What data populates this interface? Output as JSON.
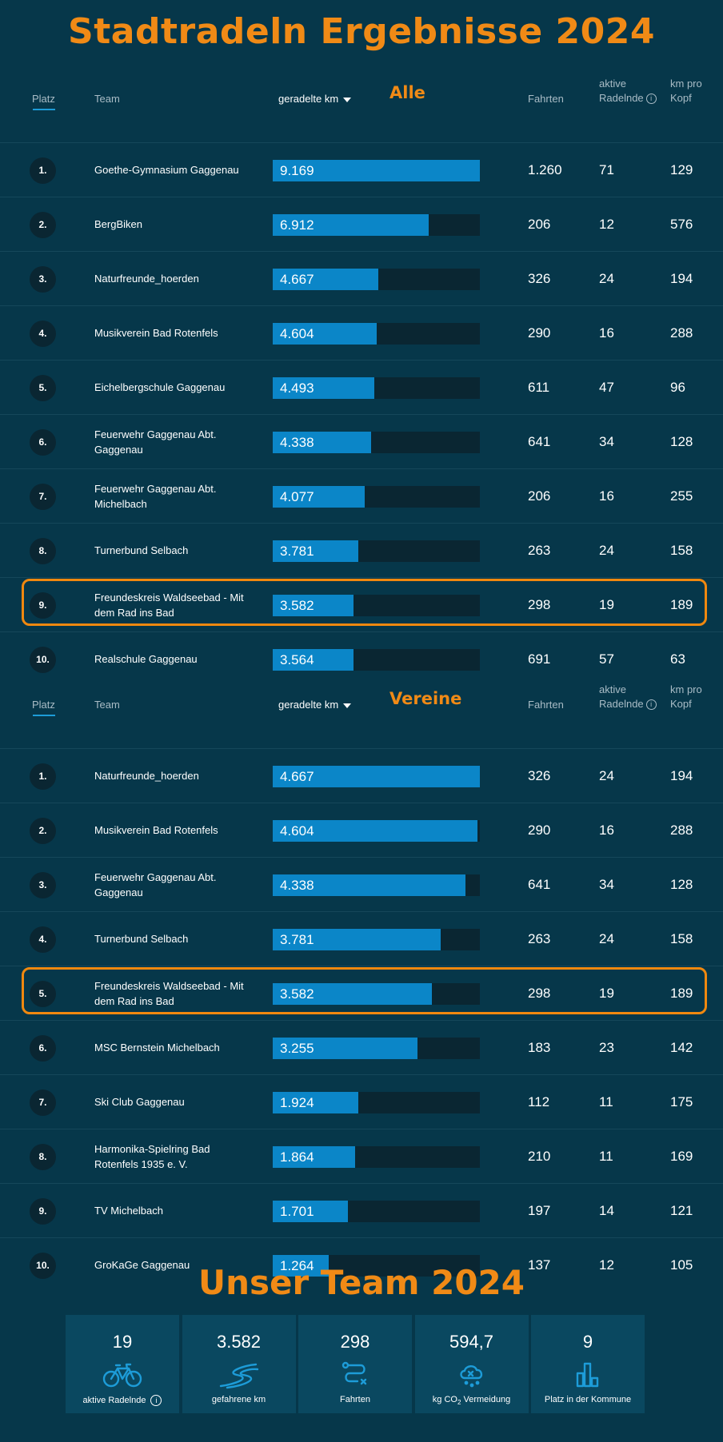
{
  "title": "Stadtradeln Ergebnisse 2024",
  "columns": {
    "platz": "Platz",
    "team": "Team",
    "km": "geradelte km",
    "fahrten": "Fahrten",
    "aktive_line1": "aktive",
    "aktive_line2": "Radelnde",
    "kmkopf_line1": "km pro",
    "kmkopf_line2": "Kopf"
  },
  "tables": [
    {
      "label": "Alle",
      "max_km": 9169,
      "highlight_rank": "9.",
      "rows": [
        {
          "rank": "1.",
          "team": "Goethe-Gymnasium Gaggenau",
          "km": "9.169",
          "km_value": 9169,
          "fahrten": "1.260",
          "aktive": "71",
          "kmkopf": "129"
        },
        {
          "rank": "2.",
          "team": "BergBiken",
          "km": "6.912",
          "km_value": 6912,
          "fahrten": "206",
          "aktive": "12",
          "kmkopf": "576"
        },
        {
          "rank": "3.",
          "team": "Naturfreunde_hoerden",
          "km": "4.667",
          "km_value": 4667,
          "fahrten": "326",
          "aktive": "24",
          "kmkopf": "194"
        },
        {
          "rank": "4.",
          "team": "Musikverein Bad Rotenfels",
          "km": "4.604",
          "km_value": 4604,
          "fahrten": "290",
          "aktive": "16",
          "kmkopf": "288"
        },
        {
          "rank": "5.",
          "team": "Eichelbergschule Gaggenau",
          "km": "4.493",
          "km_value": 4493,
          "fahrten": "611",
          "aktive": "47",
          "kmkopf": "96"
        },
        {
          "rank": "6.",
          "team": "Feuerwehr Gaggenau Abt. Gaggenau",
          "km": "4.338",
          "km_value": 4338,
          "fahrten": "641",
          "aktive": "34",
          "kmkopf": "128"
        },
        {
          "rank": "7.",
          "team": "Feuerwehr Gaggenau Abt. Michelbach",
          "km": "4.077",
          "km_value": 4077,
          "fahrten": "206",
          "aktive": "16",
          "kmkopf": "255"
        },
        {
          "rank": "8.",
          "team": "Turnerbund Selbach",
          "km": "3.781",
          "km_value": 3781,
          "fahrten": "263",
          "aktive": "24",
          "kmkopf": "158"
        },
        {
          "rank": "9.",
          "team": "Freundeskreis Waldseebad - Mit dem Rad ins Bad",
          "km": "3.582",
          "km_value": 3582,
          "fahrten": "298",
          "aktive": "19",
          "kmkopf": "189"
        },
        {
          "rank": "10.",
          "team": "Realschule Gaggenau",
          "km": "3.564",
          "km_value": 3564,
          "fahrten": "691",
          "aktive": "57",
          "kmkopf": "63"
        }
      ]
    },
    {
      "label": "Vereine",
      "max_km": 4667,
      "highlight_rank": "5.",
      "rows": [
        {
          "rank": "1.",
          "team": "Naturfreunde_hoerden",
          "km": "4.667",
          "km_value": 4667,
          "fahrten": "326",
          "aktive": "24",
          "kmkopf": "194"
        },
        {
          "rank": "2.",
          "team": "Musikverein Bad Rotenfels",
          "km": "4.604",
          "km_value": 4604,
          "fahrten": "290",
          "aktive": "16",
          "kmkopf": "288"
        },
        {
          "rank": "3.",
          "team": "Feuerwehr Gaggenau Abt. Gaggenau",
          "km": "4.338",
          "km_value": 4338,
          "fahrten": "641",
          "aktive": "34",
          "kmkopf": "128"
        },
        {
          "rank": "4.",
          "team": "Turnerbund Selbach",
          "km": "3.781",
          "km_value": 3781,
          "fahrten": "263",
          "aktive": "24",
          "kmkopf": "158"
        },
        {
          "rank": "5.",
          "team": "Freundeskreis Waldseebad - Mit dem Rad ins Bad",
          "km": "3.582",
          "km_value": 3582,
          "fahrten": "298",
          "aktive": "19",
          "kmkopf": "189"
        },
        {
          "rank": "6.",
          "team": "MSC Bernstein Michelbach",
          "km": "3.255",
          "km_value": 3255,
          "fahrten": "183",
          "aktive": "23",
          "kmkopf": "142"
        },
        {
          "rank": "7.",
          "team": "Ski Club Gaggenau",
          "km": "1.924",
          "km_value": 1924,
          "fahrten": "112",
          "aktive": "11",
          "kmkopf": "175"
        },
        {
          "rank": "8.",
          "team": "Harmonika-Spielring Bad Rotenfels 1935 e. V.",
          "km": "1.864",
          "km_value": 1864,
          "fahrten": "210",
          "aktive": "11",
          "kmkopf": "169"
        },
        {
          "rank": "9.",
          "team": "TV Michelbach",
          "km": "1.701",
          "km_value": 1701,
          "fahrten": "197",
          "aktive": "14",
          "kmkopf": "121"
        },
        {
          "rank": "10.",
          "team": "GroKaGe Gaggenau",
          "km": "1.264",
          "km_value": 1264,
          "fahrten": "137",
          "aktive": "12",
          "kmkopf": "105"
        }
      ]
    }
  ],
  "team_section": {
    "title": "Unser Team 2024",
    "stats": [
      {
        "value": "19",
        "label": "aktive Radelnde",
        "icon": "bicycle-icon"
      },
      {
        "value": "3.582",
        "label": "gefahrene km",
        "icon": "road-icon"
      },
      {
        "value": "298",
        "label": "Fahrten",
        "icon": "route-icon"
      },
      {
        "value": "594,7",
        "label_pre": "kg CO",
        "label_sub": "2",
        "label_post": " Vermeidung",
        "icon": "co2-cloud-icon"
      },
      {
        "value": "9",
        "label": "Platz in der Kommune",
        "icon": "bar-chart-icon"
      }
    ]
  },
  "colors": {
    "accent": "#f08a16",
    "bar": "#0b86c8",
    "track": "#0a2632",
    "background": "#06374a"
  }
}
